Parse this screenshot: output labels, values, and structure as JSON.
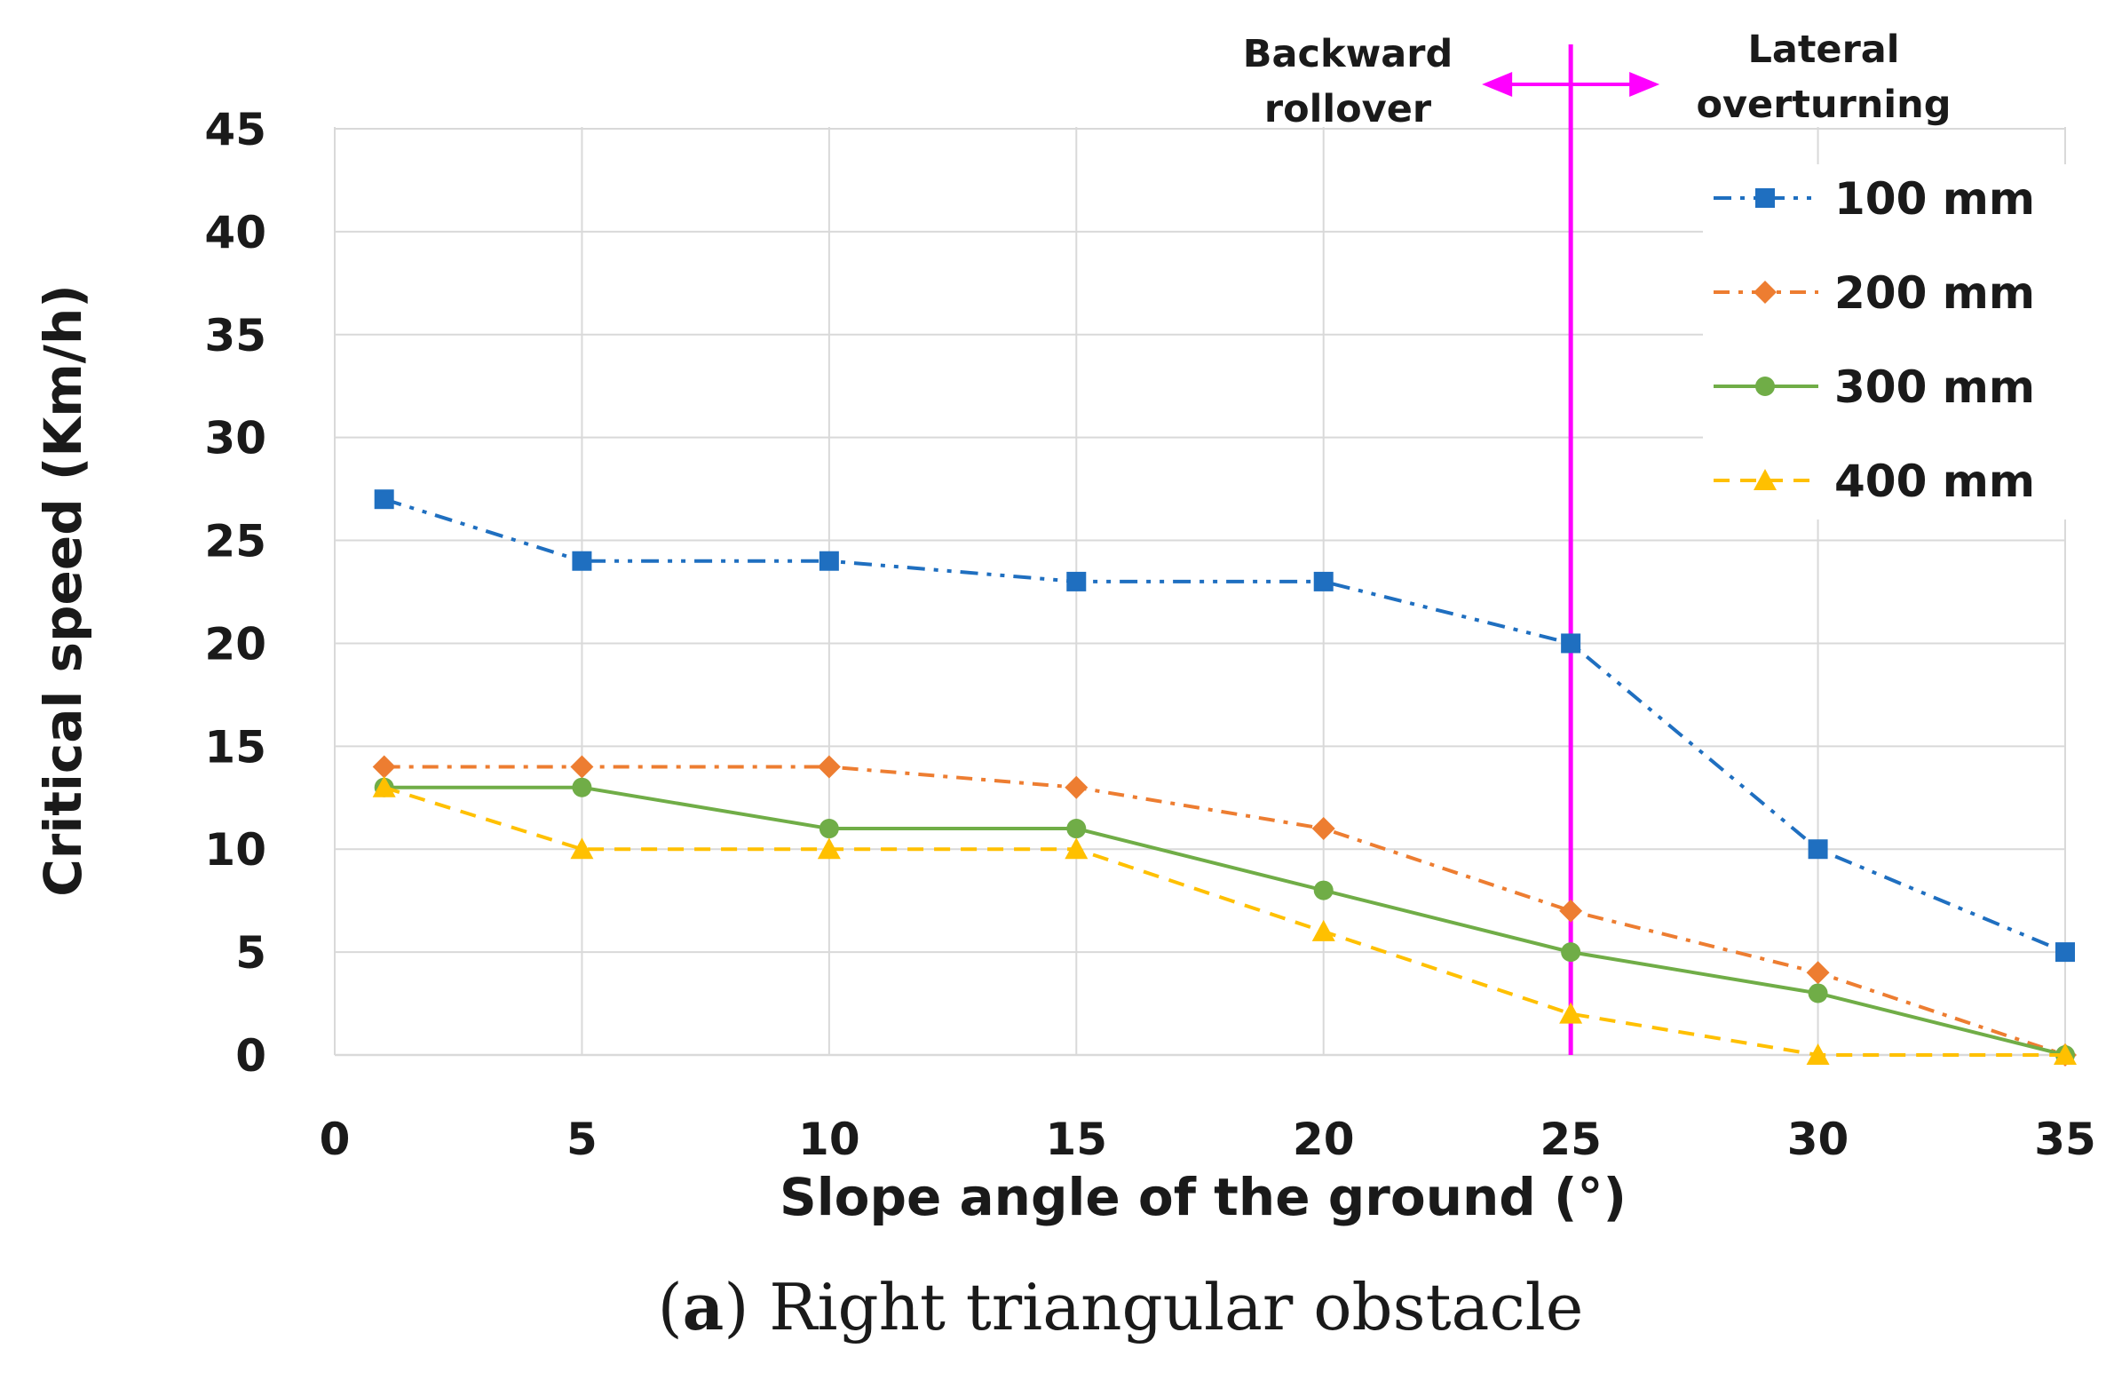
{
  "chart_data": {
    "type": "line",
    "caption": {
      "prefix": "(",
      "letter": "a",
      "suffix": ") Right triangular obstacle"
    },
    "xlabel": "Slope angle of the ground (°)",
    "ylabel": "Critical speed (Km/h)",
    "xlim": [
      0,
      35
    ],
    "ylim": [
      0,
      45
    ],
    "xticks": [
      0,
      5,
      10,
      15,
      20,
      25,
      30,
      35
    ],
    "yticks": [
      0,
      5,
      10,
      15,
      20,
      25,
      30,
      35,
      40,
      45
    ],
    "grid": true,
    "legend_position": "top-right",
    "x": [
      1,
      5,
      10,
      15,
      20,
      25,
      30,
      35
    ],
    "series": [
      {
        "name": "100 mm",
        "color": "#1f6fc0",
        "marker": "square",
        "dash": "dash-dot-dot",
        "values": [
          27,
          24,
          24,
          23,
          23,
          20,
          10,
          5
        ]
      },
      {
        "name": "200 mm",
        "color": "#ed7d31",
        "marker": "diamond",
        "dash": "dash-dot",
        "values": [
          14,
          14,
          14,
          13,
          11,
          7,
          4,
          0
        ]
      },
      {
        "name": "300 mm",
        "color": "#70ad47",
        "marker": "circle",
        "dash": "solid",
        "values": [
          13,
          13,
          11,
          11,
          8,
          5,
          3,
          0
        ]
      },
      {
        "name": "400 mm",
        "color": "#ffc000",
        "marker": "triangle",
        "dash": "dashed",
        "values": [
          13,
          10,
          10,
          10,
          6,
          2,
          0,
          0
        ]
      }
    ],
    "annotations": {
      "divider_x": 25,
      "divider_color": "#ff00ff",
      "left_label": [
        "Backward",
        "rollover"
      ],
      "right_label": [
        "Lateral",
        "overturning"
      ]
    }
  }
}
